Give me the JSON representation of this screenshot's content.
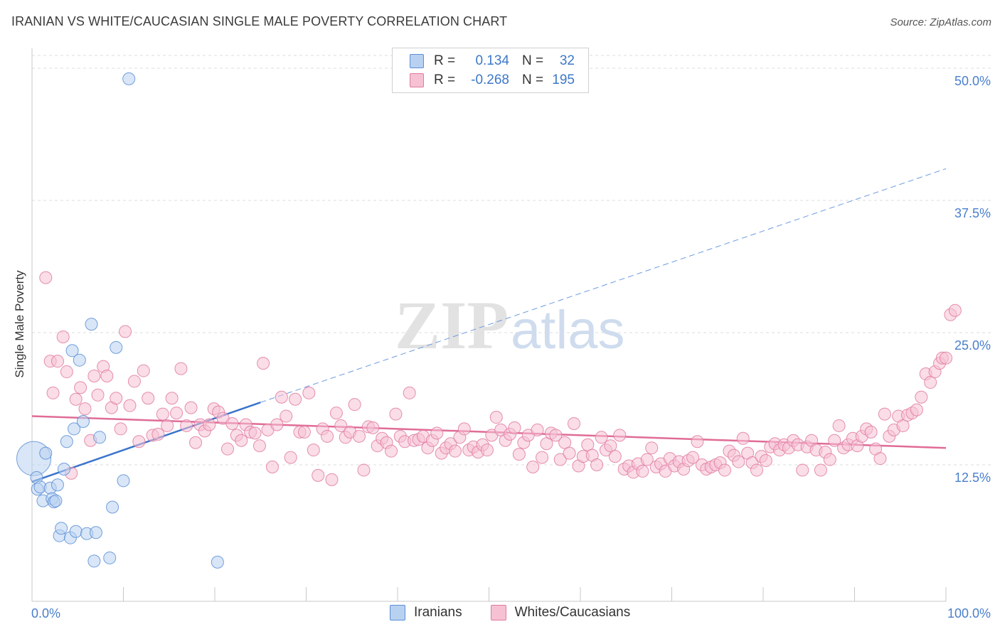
{
  "title": "IRANIAN VS WHITE/CAUCASIAN SINGLE MALE POVERTY CORRELATION CHART",
  "source": "Source: ZipAtlas.com",
  "watermark": {
    "zip": "ZIP",
    "atlas": "atlas"
  },
  "legend": {
    "rows": [
      {
        "r_label": "R =",
        "r_value": "0.134",
        "n_label": "N =",
        "n_value": "32",
        "color": "#5b8fd6",
        "fill": "#b9d1f1"
      },
      {
        "r_label": "R =",
        "r_value": "-0.268",
        "n_label": "N =",
        "n_value": "195",
        "color": "#e07ba0",
        "fill": "#f6c1d3"
      }
    ]
  },
  "bottom_legend": {
    "iranians": "Iranians",
    "whites": "Whites/Caucasians"
  },
  "chart_data": {
    "type": "scatter",
    "ylabel": "Single Male Poverty",
    "x_tick_labels": [
      "0.0%",
      "100.0%"
    ],
    "y_tick_labels": [
      "12.5%",
      "25.0%",
      "37.5%",
      "50.0%"
    ],
    "xlim": [
      0,
      100
    ],
    "ylim": [
      0,
      51.5
    ],
    "grid": true,
    "series": [
      {
        "name": "Iranians",
        "color": "#5b8fd6",
        "fill": "#b9d1f1",
        "points": [
          [
            0.2,
            13.1
          ],
          [
            0.5,
            11.3
          ],
          [
            0.6,
            10.2
          ],
          [
            0.9,
            10.4
          ],
          [
            1.5,
            13.6
          ],
          [
            1.2,
            9.1
          ],
          [
            2.0,
            10.3
          ],
          [
            2.2,
            9.3
          ],
          [
            2.4,
            9.0
          ],
          [
            2.6,
            9.1
          ],
          [
            2.8,
            10.6
          ],
          [
            3.0,
            5.8
          ],
          [
            3.2,
            6.5
          ],
          [
            3.5,
            12.1
          ],
          [
            3.8,
            14.7
          ],
          [
            4.2,
            5.6
          ],
          [
            4.4,
            23.3
          ],
          [
            4.6,
            15.9
          ],
          [
            4.8,
            6.2
          ],
          [
            5.2,
            22.4
          ],
          [
            5.6,
            16.6
          ],
          [
            6.0,
            6.0
          ],
          [
            6.5,
            25.8
          ],
          [
            6.8,
            3.4
          ],
          [
            7.0,
            6.1
          ],
          [
            7.4,
            15.1
          ],
          [
            8.5,
            3.7
          ],
          [
            8.8,
            8.5
          ],
          [
            9.2,
            23.6
          ],
          [
            10.0,
            11.0
          ],
          [
            10.6,
            49.0
          ],
          [
            20.3,
            3.3
          ]
        ],
        "trend": {
          "from": [
            0,
            10.9
          ],
          "to": [
            25,
            18.4
          ],
          "dashed_to": [
            100,
            40.5
          ]
        }
      },
      {
        "name": "Whites/Caucasians",
        "color": "#e07ba0",
        "fill": "#f6c1d3",
        "points": [
          [
            1.5,
            30.2
          ],
          [
            2.0,
            22.3
          ],
          [
            2.3,
            19.3
          ],
          [
            2.8,
            22.3
          ],
          [
            3.4,
            24.6
          ],
          [
            3.8,
            21.3
          ],
          [
            4.3,
            11.7
          ],
          [
            4.8,
            18.7
          ],
          [
            5.3,
            19.8
          ],
          [
            5.8,
            17.8
          ],
          [
            6.4,
            14.8
          ],
          [
            6.8,
            20.9
          ],
          [
            7.2,
            19.1
          ],
          [
            7.8,
            21.8
          ],
          [
            8.2,
            20.9
          ],
          [
            8.7,
            17.9
          ],
          [
            9.2,
            18.8
          ],
          [
            9.7,
            15.9
          ],
          [
            10.2,
            25.1
          ],
          [
            10.7,
            18.1
          ],
          [
            11.2,
            20.4
          ],
          [
            11.7,
            14.7
          ],
          [
            12.2,
            21.4
          ],
          [
            12.7,
            18.8
          ],
          [
            13.2,
            15.3
          ],
          [
            13.8,
            15.4
          ],
          [
            14.3,
            17.3
          ],
          [
            14.8,
            16.2
          ],
          [
            15.3,
            18.8
          ],
          [
            15.8,
            17.4
          ],
          [
            16.3,
            21.6
          ],
          [
            16.9,
            16.2
          ],
          [
            17.4,
            17.9
          ],
          [
            17.9,
            14.6
          ],
          [
            18.4,
            16.3
          ],
          [
            18.9,
            15.7
          ],
          [
            19.4,
            16.3
          ],
          [
            19.9,
            17.8
          ],
          [
            20.4,
            17.5
          ],
          [
            20.9,
            16.9
          ],
          [
            21.4,
            14.0
          ],
          [
            21.9,
            16.4
          ],
          [
            22.4,
            15.3
          ],
          [
            22.9,
            14.8
          ],
          [
            23.4,
            16.3
          ],
          [
            23.9,
            15.6
          ],
          [
            24.4,
            15.5
          ],
          [
            24.9,
            14.3
          ],
          [
            25.3,
            22.1
          ],
          [
            25.8,
            15.8
          ],
          [
            26.3,
            12.3
          ],
          [
            26.8,
            16.3
          ],
          [
            27.3,
            18.9
          ],
          [
            27.8,
            17.1
          ],
          [
            28.3,
            13.2
          ],
          [
            28.8,
            18.7
          ],
          [
            29.3,
            15.6
          ],
          [
            29.8,
            15.6
          ],
          [
            30.3,
            19.3
          ],
          [
            30.8,
            13.9
          ],
          [
            31.3,
            11.5
          ],
          [
            31.8,
            15.9
          ],
          [
            32.3,
            15.2
          ],
          [
            32.8,
            11.1
          ],
          [
            33.3,
            17.4
          ],
          [
            33.8,
            16.2
          ],
          [
            34.3,
            15.1
          ],
          [
            34.8,
            15.6
          ],
          [
            35.3,
            18.2
          ],
          [
            35.8,
            15.2
          ],
          [
            36.3,
            12.0
          ],
          [
            36.8,
            16.1
          ],
          [
            37.3,
            16.0
          ],
          [
            37.8,
            14.3
          ],
          [
            38.3,
            15.0
          ],
          [
            38.8,
            14.6
          ],
          [
            39.3,
            13.8
          ],
          [
            39.8,
            17.3
          ],
          [
            40.3,
            15.2
          ],
          [
            40.8,
            14.7
          ],
          [
            41.3,
            19.3
          ],
          [
            41.8,
            14.8
          ],
          [
            42.3,
            14.9
          ],
          [
            42.8,
            15.2
          ],
          [
            43.3,
            14.1
          ],
          [
            43.8,
            14.8
          ],
          [
            44.3,
            15.5
          ],
          [
            44.8,
            13.6
          ],
          [
            45.3,
            14.1
          ],
          [
            45.8,
            14.5
          ],
          [
            46.3,
            13.8
          ],
          [
            46.8,
            15.1
          ],
          [
            47.3,
            15.9
          ],
          [
            47.8,
            13.9
          ],
          [
            48.3,
            14.2
          ],
          [
            48.8,
            13.7
          ],
          [
            49.3,
            14.4
          ],
          [
            49.8,
            13.9
          ],
          [
            50.3,
            15.3
          ],
          [
            50.8,
            17.0
          ],
          [
            51.3,
            15.8
          ],
          [
            51.8,
            14.8
          ],
          [
            52.3,
            15.4
          ],
          [
            52.8,
            16.0
          ],
          [
            53.3,
            13.5
          ],
          [
            53.8,
            14.6
          ],
          [
            54.3,
            15.3
          ],
          [
            54.8,
            12.3
          ],
          [
            55.3,
            15.8
          ],
          [
            55.8,
            13.2
          ],
          [
            56.3,
            14.5
          ],
          [
            56.8,
            15.5
          ],
          [
            57.3,
            15.3
          ],
          [
            57.8,
            13.0
          ],
          [
            58.3,
            14.6
          ],
          [
            58.8,
            13.6
          ],
          [
            59.3,
            16.4
          ],
          [
            59.8,
            12.4
          ],
          [
            60.3,
            13.3
          ],
          [
            60.8,
            14.4
          ],
          [
            61.3,
            13.4
          ],
          [
            61.8,
            12.5
          ],
          [
            62.3,
            15.1
          ],
          [
            62.8,
            13.9
          ],
          [
            63.3,
            14.3
          ],
          [
            63.8,
            13.3
          ],
          [
            64.3,
            15.3
          ],
          [
            64.8,
            12.1
          ],
          [
            65.3,
            12.4
          ],
          [
            65.8,
            11.8
          ],
          [
            66.3,
            12.6
          ],
          [
            66.8,
            11.9
          ],
          [
            67.3,
            13.0
          ],
          [
            67.8,
            14.1
          ],
          [
            68.3,
            12.3
          ],
          [
            68.8,
            12.6
          ],
          [
            69.3,
            11.9
          ],
          [
            69.8,
            13.1
          ],
          [
            70.3,
            12.4
          ],
          [
            70.8,
            12.8
          ],
          [
            71.3,
            12.1
          ],
          [
            71.8,
            12.9
          ],
          [
            72.3,
            13.2
          ],
          [
            72.8,
            14.7
          ],
          [
            73.3,
            12.5
          ],
          [
            73.8,
            12.1
          ],
          [
            74.3,
            12.3
          ],
          [
            74.8,
            12.5
          ],
          [
            75.3,
            12.7
          ],
          [
            75.8,
            12.0
          ],
          [
            76.3,
            13.8
          ],
          [
            76.8,
            13.4
          ],
          [
            77.3,
            12.8
          ],
          [
            77.8,
            15.0
          ],
          [
            78.3,
            13.6
          ],
          [
            78.8,
            12.7
          ],
          [
            79.3,
            12.0
          ],
          [
            79.8,
            13.3
          ],
          [
            80.3,
            12.9
          ],
          [
            80.8,
            14.2
          ],
          [
            81.3,
            14.5
          ],
          [
            81.8,
            13.9
          ],
          [
            82.3,
            14.4
          ],
          [
            82.8,
            14.1
          ],
          [
            83.3,
            14.8
          ],
          [
            83.8,
            14.4
          ],
          [
            84.3,
            12.0
          ],
          [
            84.8,
            14.2
          ],
          [
            85.3,
            14.8
          ],
          [
            85.8,
            13.9
          ],
          [
            86.3,
            12.0
          ],
          [
            86.8,
            13.7
          ],
          [
            87.3,
            13.0
          ],
          [
            87.8,
            14.8
          ],
          [
            88.3,
            16.2
          ],
          [
            88.8,
            14.1
          ],
          [
            89.3,
            14.4
          ],
          [
            89.8,
            15.0
          ],
          [
            90.3,
            14.3
          ],
          [
            90.8,
            15.2
          ],
          [
            91.3,
            15.9
          ],
          [
            91.8,
            15.6
          ],
          [
            92.3,
            14.0
          ],
          [
            92.8,
            13.1
          ],
          [
            93.3,
            17.3
          ],
          [
            93.8,
            15.2
          ],
          [
            94.3,
            15.8
          ],
          [
            94.8,
            17.1
          ],
          [
            95.3,
            16.2
          ],
          [
            95.8,
            17.2
          ],
          [
            96.3,
            17.4
          ],
          [
            96.8,
            17.7
          ],
          [
            97.3,
            18.9
          ],
          [
            97.8,
            21.1
          ],
          [
            98.3,
            20.3
          ],
          [
            98.8,
            21.3
          ],
          [
            99.3,
            22.1
          ],
          [
            99.6,
            22.6
          ],
          [
            100.0,
            22.6
          ],
          [
            100.5,
            26.7
          ],
          [
            101.0,
            27.1
          ]
        ],
        "trend": {
          "from": [
            0,
            17.1
          ],
          "to": [
            100,
            14.1
          ]
        }
      }
    ]
  }
}
